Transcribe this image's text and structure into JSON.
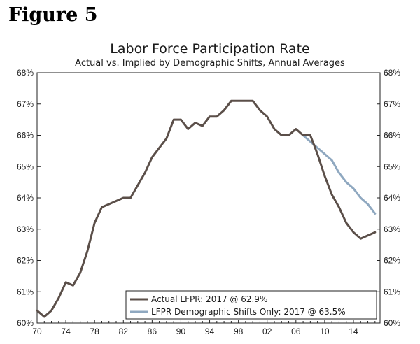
{
  "figure_label": "Figure 5",
  "chart_data": {
    "type": "line",
    "title": "Labor Force Participation Rate",
    "subtitle": "Actual vs. Implied by Demographic Shifts, Annual Averages",
    "xlabel": "",
    "ylabel": "",
    "xlim": [
      1970,
      2017.7
    ],
    "ylim": [
      60,
      68
    ],
    "x_ticks": [
      1970,
      1974,
      1978,
      1982,
      1986,
      1990,
      1994,
      1998,
      2002,
      2006,
      2010,
      2014
    ],
    "x_tick_labels": [
      "70",
      "74",
      "78",
      "82",
      "86",
      "90",
      "94",
      "98",
      "02",
      "06",
      "10",
      "14"
    ],
    "y_ticks": [
      60,
      61,
      62,
      63,
      64,
      65,
      66,
      67,
      68
    ],
    "y_tick_labels": [
      "60%",
      "61%",
      "62%",
      "63%",
      "64%",
      "65%",
      "66%",
      "67%",
      "68%"
    ],
    "grid": false,
    "legend_position": "bottom-right",
    "series": [
      {
        "name": "Actual LFPR: 2017 @ 62.9%",
        "color": "#5b4f49",
        "x": [
          1970,
          1971,
          1972,
          1973,
          1974,
          1975,
          1976,
          1977,
          1978,
          1979,
          1980,
          1981,
          1982,
          1983,
          1984,
          1985,
          1986,
          1987,
          1988,
          1989,
          1990,
          1991,
          1992,
          1993,
          1994,
          1995,
          1996,
          1997,
          1998,
          1999,
          2000,
          2001,
          2002,
          2003,
          2004,
          2005,
          2006,
          2007,
          2008,
          2009,
          2010,
          2011,
          2012,
          2013,
          2014,
          2015,
          2016,
          2017
        ],
        "values": [
          60.4,
          60.2,
          60.4,
          60.8,
          61.3,
          61.2,
          61.6,
          62.3,
          63.2,
          63.7,
          63.8,
          63.9,
          64.0,
          64.0,
          64.4,
          64.8,
          65.3,
          65.6,
          65.9,
          66.5,
          66.5,
          66.2,
          66.4,
          66.3,
          66.6,
          66.6,
          66.8,
          67.1,
          67.1,
          67.1,
          67.1,
          66.8,
          66.6,
          66.2,
          66.0,
          66.0,
          66.2,
          66.0,
          66.0,
          65.4,
          64.7,
          64.1,
          63.7,
          63.2,
          62.9,
          62.7,
          62.8,
          62.9
        ]
      },
      {
        "name": "LFPR Demographic Shifts Only: 2017 @ 63.5%",
        "color": "#8fa8c0",
        "x": [
          2007,
          2008,
          2009,
          2010,
          2011,
          2012,
          2013,
          2014,
          2015,
          2016,
          2017
        ],
        "values": [
          66.0,
          65.8,
          65.6,
          65.4,
          65.2,
          64.8,
          64.5,
          64.3,
          64.0,
          63.8,
          63.5
        ]
      }
    ]
  }
}
